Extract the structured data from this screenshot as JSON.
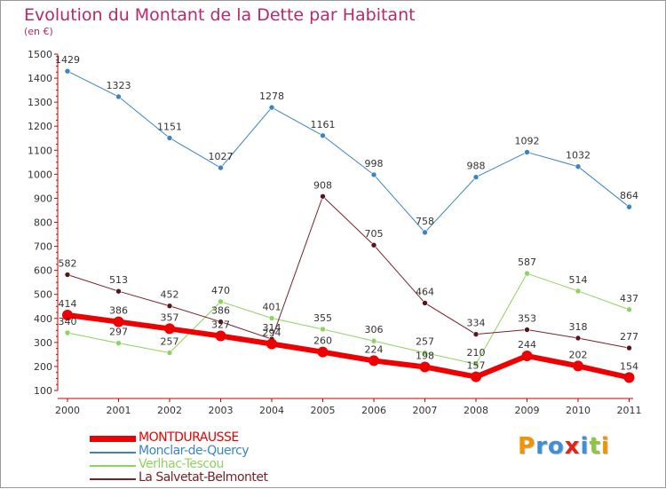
{
  "title": "Evolution du Montant de la Dette par Habitant",
  "subtitle": "(en €)",
  "logo": {
    "text": "Proxiti",
    "letters": [
      {
        "ch": "P",
        "color": "#f29400"
      },
      {
        "ch": "r",
        "color": "#3d8fd6"
      },
      {
        "ch": "o",
        "color": "#3d8fd6"
      },
      {
        "ch": "x",
        "color": "#e2231a"
      },
      {
        "ch": "i",
        "color": "#3d8fd6"
      },
      {
        "ch": "t",
        "color": "#8dc63f"
      },
      {
        "ch": "i",
        "color": "#f29400"
      }
    ]
  },
  "chart_data": {
    "type": "line",
    "title": "Evolution du Montant de la Dette par Habitant",
    "ylabel": "(en €)",
    "xlabel": "",
    "x": [
      "2000",
      "2001",
      "2002",
      "2003",
      "2004",
      "2005",
      "2006",
      "2007",
      "2008",
      "2009",
      "2010",
      "2011"
    ],
    "ylim": [
      100,
      1500
    ],
    "yticks": [
      100,
      200,
      300,
      400,
      500,
      600,
      700,
      800,
      900,
      1000,
      1100,
      1200,
      1300,
      1400,
      1500
    ],
    "grid": false,
    "legend": "bottom-left",
    "series": [
      {
        "name": "Monclar-de-Quercy",
        "color": "#3a84c6",
        "marker": "#3a84c6",
        "width": 1,
        "values": [
          1429,
          1323,
          1151,
          1027,
          1278,
          1161,
          998,
          758,
          988,
          1092,
          1032,
          864
        ]
      },
      {
        "name": "Verlhac-Tescou",
        "color": "#8fd35f",
        "marker": "#8fd35f",
        "width": 1,
        "values": [
          340,
          297,
          257,
          470,
          401,
          355,
          306,
          257,
          210,
          587,
          514,
          437
        ]
      },
      {
        "name": "La Salvetat-Belmontet",
        "color": "#7a2127",
        "marker": "#5a1419",
        "width": 1,
        "values": [
          582,
          513,
          452,
          386,
          314,
          908,
          705,
          464,
          334,
          353,
          318,
          277
        ]
      },
      {
        "name": "MONTDURAUSSE",
        "color": "#ee0000",
        "marker": "#ee0000",
        "width": 6,
        "values": [
          414,
          386,
          357,
          327,
          294,
          260,
          224,
          198,
          157,
          244,
          202,
          154
        ]
      }
    ],
    "legend_order": [
      "MONTDURAUSSE",
      "Monclar-de-Quercy",
      "Verlhac-Tescou",
      "La Salvetat-Belmontet"
    ]
  }
}
